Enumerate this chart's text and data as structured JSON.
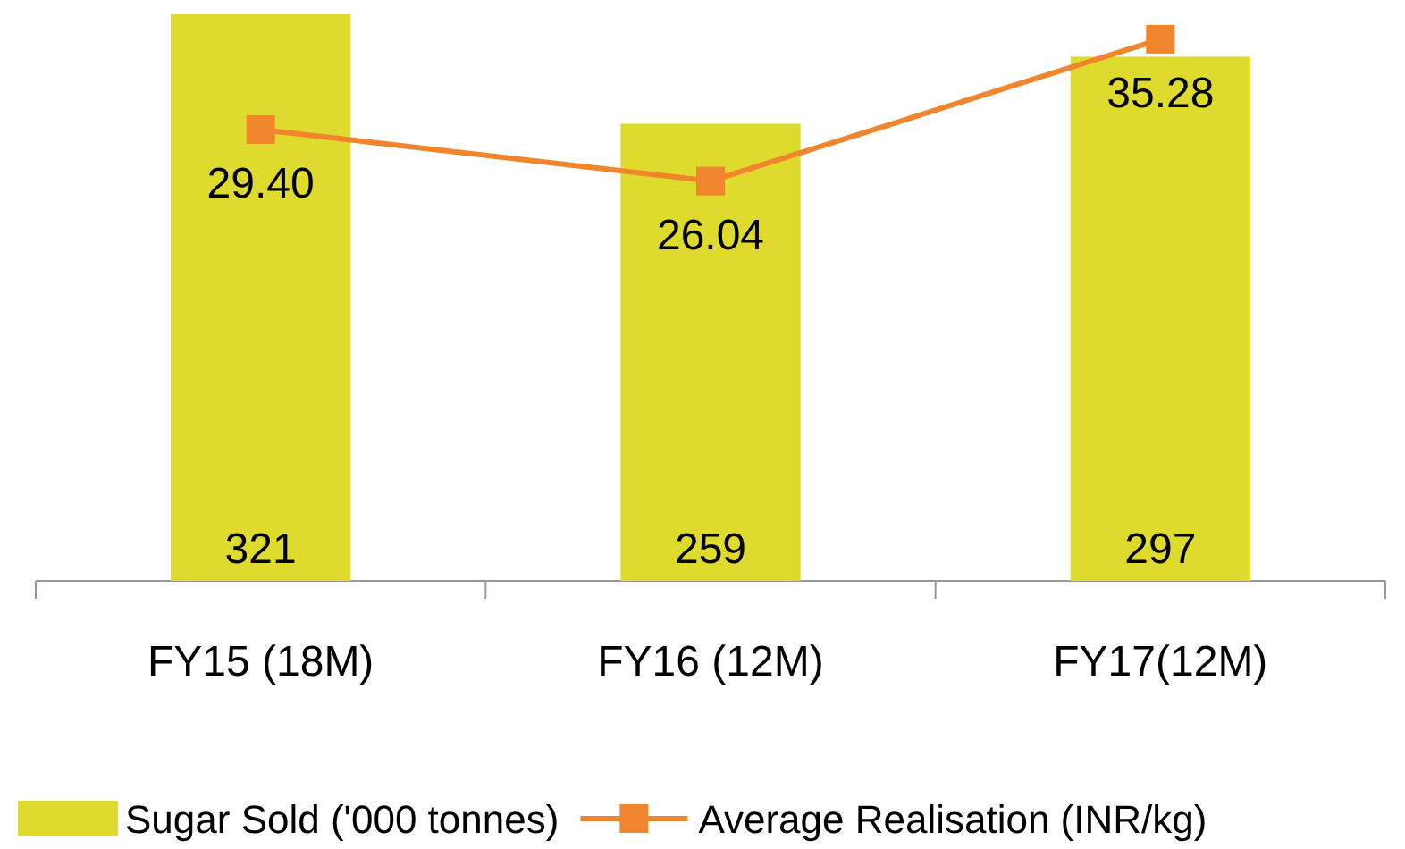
{
  "chart_data": {
    "type": "bar",
    "categories": [
      "FY15 (18M)",
      "FY16 (12M)",
      "FY17(12M)"
    ],
    "series": [
      {
        "name": "Sugar Sold ('000 tonnes)",
        "color": "#dfdb2e",
        "values": [
          321,
          259,
          297
        ]
      },
      {
        "name": "Average Realisation (INR/kg)",
        "type": "line",
        "axis": "y2",
        "color": "#f0852d",
        "marker": "square",
        "values": [
          29.4,
          26.04,
          35.28
        ],
        "value_labels": [
          "29.40",
          "26.04",
          "35.28"
        ]
      }
    ],
    "data_labels": true,
    "legend": "bottom"
  }
}
